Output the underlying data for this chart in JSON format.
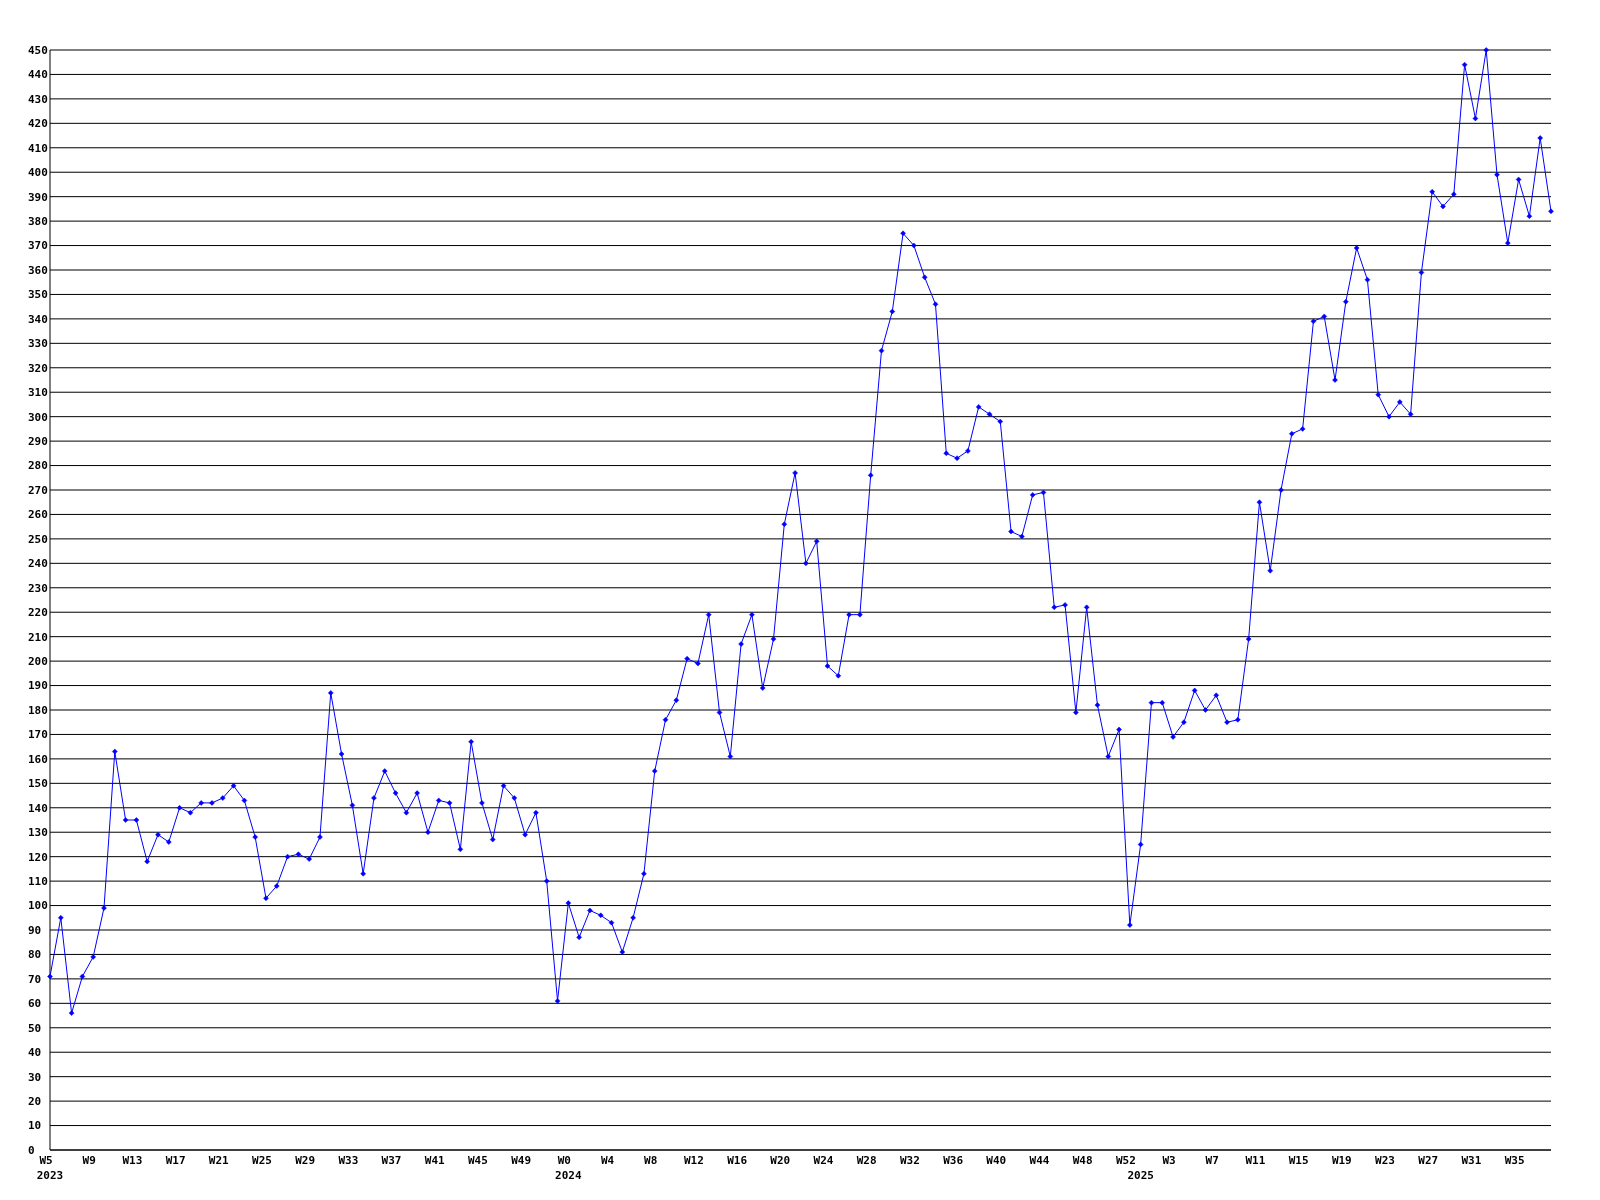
{
  "chart_data": {
    "type": "line",
    "categories": [
      "W5\n2023",
      null,
      null,
      null,
      "W9",
      null,
      null,
      null,
      "W13",
      null,
      null,
      null,
      "W17",
      null,
      null,
      null,
      "W21",
      null,
      null,
      null,
      "W25",
      null,
      null,
      null,
      "W29",
      null,
      null,
      null,
      "W33",
      null,
      null,
      null,
      "W37",
      null,
      null,
      null,
      "W41",
      null,
      null,
      null,
      "W45",
      null,
      null,
      null,
      "W49",
      null,
      null,
      null,
      "W0\n2024",
      null,
      null,
      null,
      "W4",
      null,
      null,
      null,
      "W8",
      null,
      null,
      null,
      "W12",
      null,
      null,
      null,
      "W16",
      null,
      null,
      null,
      "W20",
      null,
      null,
      null,
      "W24",
      null,
      null,
      null,
      "W28",
      null,
      null,
      null,
      "W32",
      null,
      null,
      null,
      "W36",
      null,
      null,
      null,
      "W40",
      null,
      null,
      null,
      "W44",
      null,
      null,
      null,
      "W48",
      null,
      null,
      null,
      "W52",
      "\n2025",
      null,
      null,
      "W3",
      null,
      null,
      null,
      "W7",
      null,
      null,
      null,
      "W11",
      null,
      null,
      null,
      "W15",
      null,
      null,
      null,
      "W19",
      null,
      null,
      null,
      "W23",
      null,
      null,
      null,
      "W27",
      null,
      null,
      null,
      "W31",
      null,
      null,
      null,
      "W35",
      null,
      null,
      null
    ],
    "series": [
      {
        "color": "#0000ff",
        "values": [
          71,
          95,
          56,
          71,
          79,
          99,
          163,
          135,
          135,
          118,
          129,
          126,
          140,
          138,
          142,
          142,
          144,
          149,
          143,
          128,
          103,
          108,
          120,
          121,
          119,
          128,
          187,
          162,
          141,
          113,
          144,
          155,
          146,
          138,
          146,
          130,
          143,
          142,
          123,
          167,
          142,
          127,
          149,
          144,
          129,
          138,
          110,
          61,
          101,
          87,
          98,
          96,
          93,
          81,
          95,
          113,
          155,
          176,
          184,
          201,
          199,
          219,
          179,
          161,
          207,
          219,
          189,
          209,
          256,
          277,
          240,
          249,
          198,
          194,
          219,
          219,
          276,
          327,
          343,
          375,
          370,
          357,
          346,
          285,
          283,
          286,
          304,
          301,
          298,
          253,
          251,
          268,
          269,
          222,
          223,
          179,
          222,
          182,
          161,
          172,
          92,
          125,
          183,
          183,
          169,
          175,
          188,
          180,
          186,
          175,
          176,
          209,
          265,
          237,
          270,
          293,
          295,
          339,
          341,
          315,
          347,
          369,
          356,
          309,
          300,
          306,
          301,
          359,
          392,
          386,
          391,
          444,
          422,
          450,
          399,
          371,
          397,
          382,
          414,
          384
        ]
      }
    ],
    "ylim": [
      0,
      450
    ],
    "yticks": [
      0,
      10,
      20,
      30,
      40,
      50,
      60,
      70,
      80,
      90,
      100,
      110,
      120,
      130,
      140,
      150,
      160,
      170,
      180,
      190,
      200,
      210,
      220,
      230,
      240,
      250,
      260,
      270,
      280,
      290,
      300,
      310,
      320,
      330,
      340,
      350,
      360,
      370,
      380,
      390,
      400,
      410,
      420,
      430,
      440,
      450
    ],
    "grid": "y",
    "marker": "diamond",
    "line_style": "solid"
  }
}
